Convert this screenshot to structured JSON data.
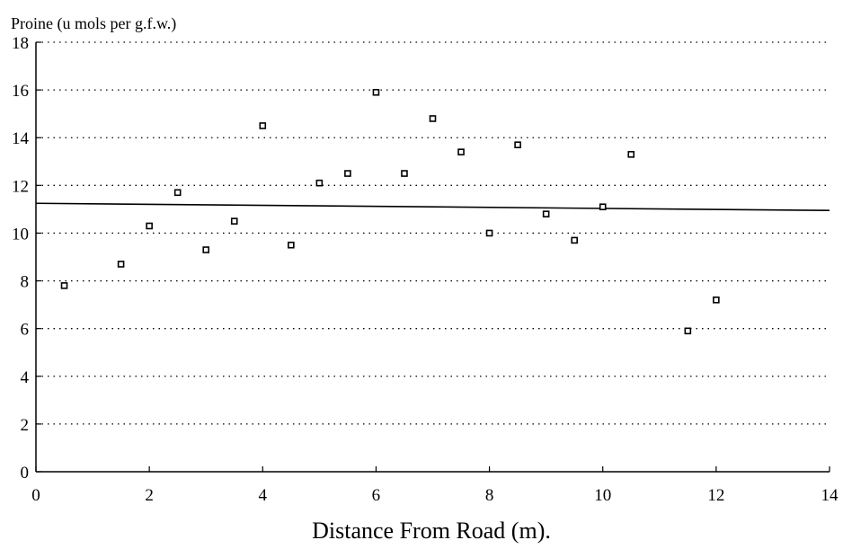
{
  "chart_data": {
    "type": "scatter",
    "title": "",
    "ylabel": "Proine (u mols per g.f.w.)",
    "xlabel": "Distance From Road (m).",
    "xlim": [
      0,
      14
    ],
    "ylim": [
      0,
      18
    ],
    "xticks": [
      0,
      2,
      4,
      6,
      8,
      10,
      12,
      14
    ],
    "yticks": [
      0,
      2,
      4,
      6,
      8,
      10,
      12,
      14,
      16,
      18
    ],
    "xtick_labels": [
      "0",
      "2",
      "4",
      "6",
      "8",
      "10",
      "12",
      "14"
    ],
    "ytick_labels": [
      "0",
      "2",
      "4",
      "6",
      "8",
      "10",
      "12",
      "14",
      "16",
      "18"
    ],
    "grid": "horizontal dotted",
    "legend": "none",
    "series": [
      {
        "points": [
          {
            "x": 0.5,
            "y": 7.8
          },
          {
            "x": 1.5,
            "y": 8.7
          },
          {
            "x": 2.0,
            "y": 10.3
          },
          {
            "x": 2.5,
            "y": 11.7
          },
          {
            "x": 3.0,
            "y": 9.3
          },
          {
            "x": 3.5,
            "y": 10.5
          },
          {
            "x": 4.0,
            "y": 14.5
          },
          {
            "x": 4.5,
            "y": 9.5
          },
          {
            "x": 5.0,
            "y": 12.1
          },
          {
            "x": 5.5,
            "y": 12.5
          },
          {
            "x": 6.0,
            "y": 15.9
          },
          {
            "x": 6.5,
            "y": 12.5
          },
          {
            "x": 7.0,
            "y": 14.8
          },
          {
            "x": 7.5,
            "y": 13.4
          },
          {
            "x": 8.0,
            "y": 10.0
          },
          {
            "x": 8.5,
            "y": 13.7
          },
          {
            "x": 9.0,
            "y": 10.8
          },
          {
            "x": 9.5,
            "y": 9.7
          },
          {
            "x": 10.0,
            "y": 11.1
          },
          {
            "x": 10.5,
            "y": 13.3
          },
          {
            "x": 11.5,
            "y": 5.9
          },
          {
            "x": 12.0,
            "y": 7.2
          }
        ]
      }
    ],
    "trend_line": {
      "x": [
        0,
        14
      ],
      "y": [
        11.25,
        10.95
      ]
    }
  }
}
